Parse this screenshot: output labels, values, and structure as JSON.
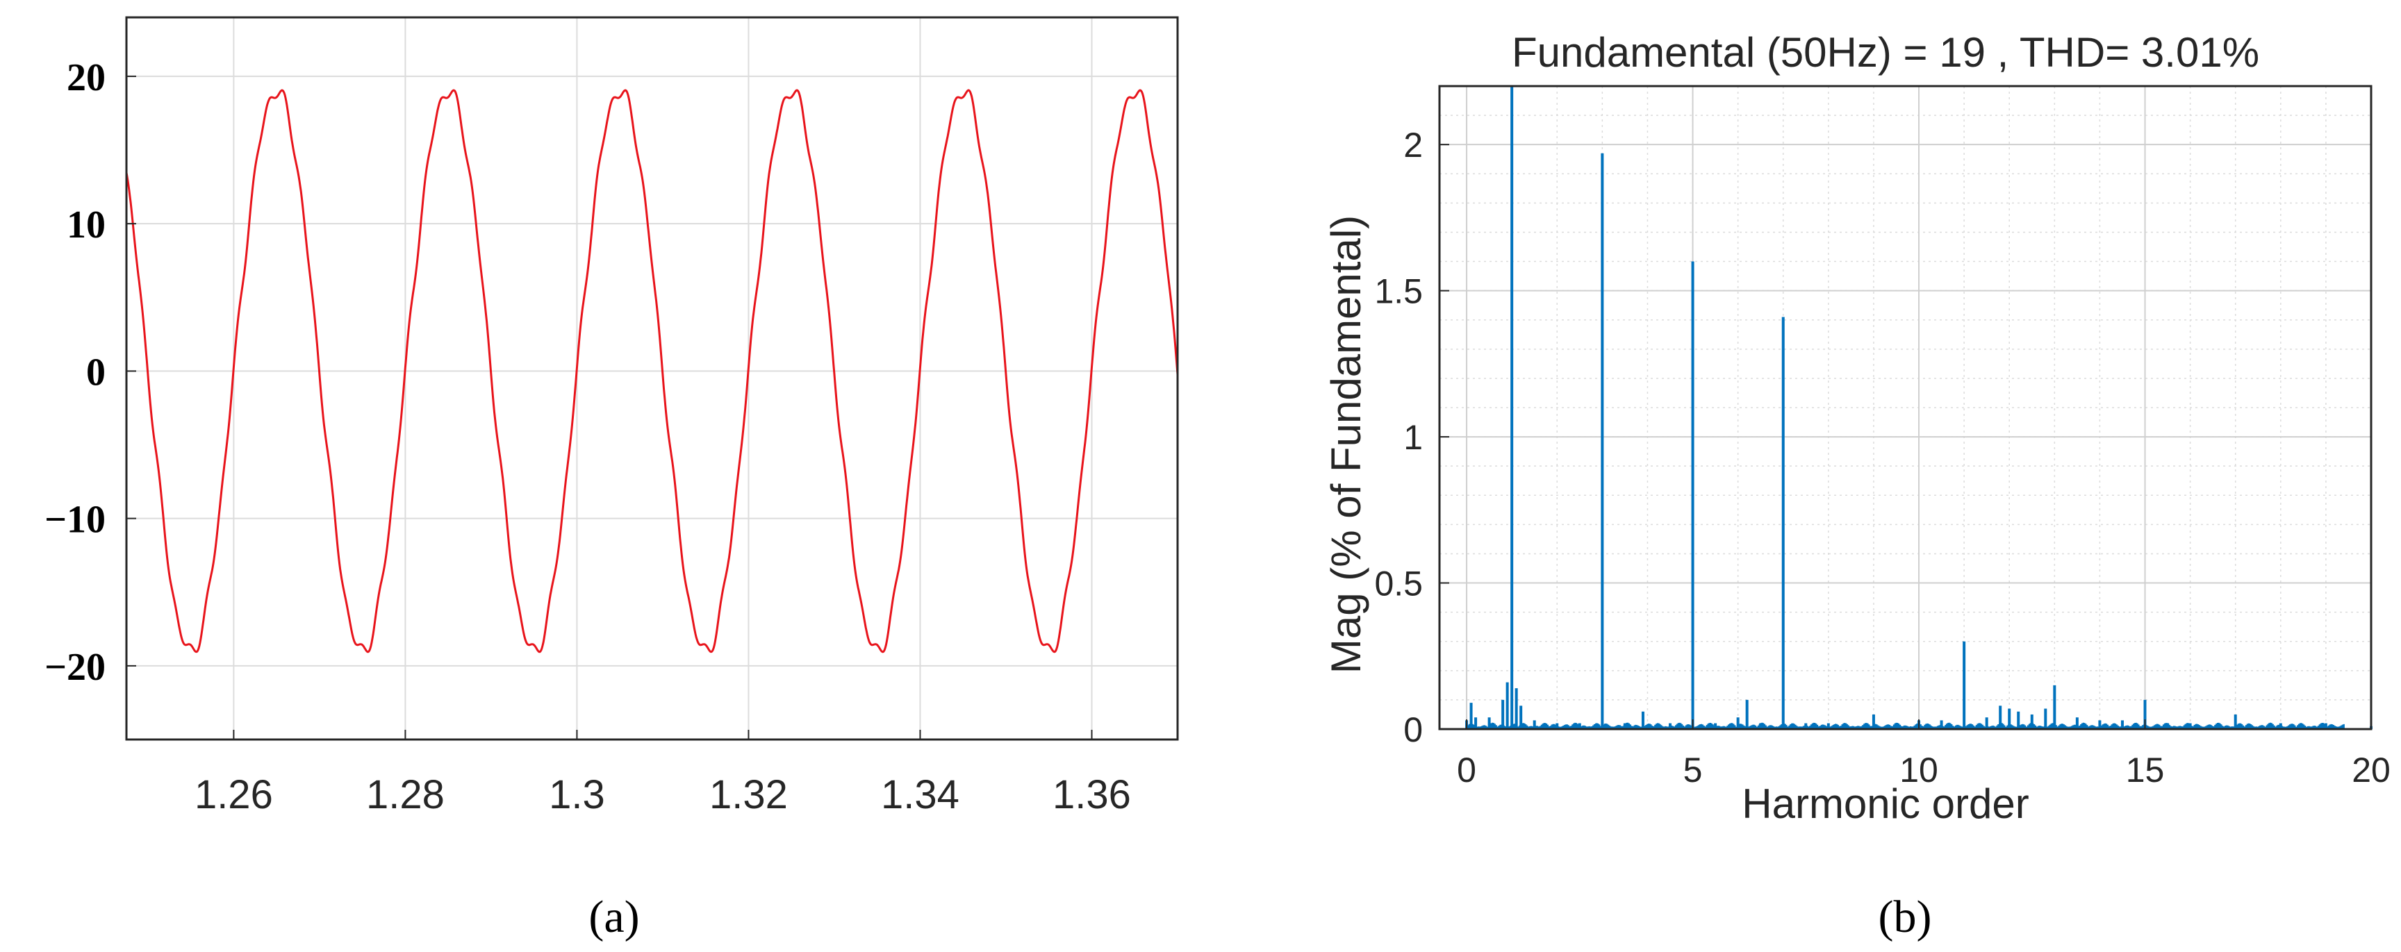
{
  "figure": {
    "panel_a_label": "(a)",
    "panel_b_label": "(b)"
  },
  "colors": {
    "waveform": "#e8141b",
    "spectrum": "#0072bd",
    "grid": "#dcdcdc",
    "axis": "#262626"
  },
  "chart_data": [
    {
      "id": "a",
      "type": "line",
      "title": "",
      "xlabel": "",
      "ylabel": "",
      "xlim": [
        1.2475,
        1.37
      ],
      "ylim": [
        -25,
        24
      ],
      "xticks": [
        1.26,
        1.28,
        1.3,
        1.32,
        1.34,
        1.36
      ],
      "xtick_labels": [
        "1.26",
        "1.28",
        "1.3",
        "1.32",
        "1.34",
        "1.36"
      ],
      "yticks": [
        -20,
        -10,
        0,
        10,
        20
      ],
      "ytick_labels": [
        "−20",
        "−10",
        "0",
        "10",
        "20"
      ],
      "grid": true,
      "series": [
        {
          "amplitude": 19,
          "frequency_hz": 50,
          "peak_time": 1.265,
          "x": [
            1.2475,
            1.25,
            1.2525,
            1.255,
            1.2575,
            1.26,
            1.2625,
            1.265,
            1.2675,
            1.27,
            1.2725,
            1.275,
            1.2775,
            1.28,
            1.2825,
            1.285,
            1.2875,
            1.29,
            1.2925,
            1.295,
            1.2975,
            1.3,
            1.3025,
            1.305,
            1.3075,
            1.31,
            1.3125,
            1.315,
            1.3175,
            1.32,
            1.3225,
            1.325,
            1.3275,
            1.33,
            1.3325,
            1.335,
            1.3375,
            1.34,
            1.3425,
            1.345,
            1.3475,
            1.35,
            1.3525,
            1.355,
            1.3575,
            1.36,
            1.3625,
            1.365,
            1.3675,
            1.37
          ],
          "y": [
            11.2,
            -4.1,
            -16.2,
            -19,
            -13.4,
            0,
            13.4,
            19,
            13.4,
            0,
            -13.4,
            -19,
            -13.4,
            0,
            13.4,
            19,
            13.4,
            0,
            -13.4,
            -19,
            -13.4,
            0,
            13.4,
            19,
            13.4,
            0,
            -13.4,
            -19,
            -13.4,
            0,
            13.4,
            19,
            13.4,
            0,
            -13.4,
            -19,
            -13.4,
            0,
            13.4,
            19,
            13.4,
            0,
            -13.4,
            -19,
            -13.4,
            0,
            13.4,
            19,
            13.4,
            0
          ]
        }
      ]
    },
    {
      "id": "b",
      "type": "bar",
      "title": "Fundamental (50Hz) = 19 , THD= 3.01%",
      "xlabel": "Harmonic order",
      "ylabel": "Mag (% of Fundamental)",
      "xlim": [
        -0.6,
        20
      ],
      "ylim": [
        0,
        2.2
      ],
      "xticks": [
        0,
        5,
        10,
        15,
        20
      ],
      "xtick_labels": [
        "0",
        "5",
        "10",
        "15",
        "20"
      ],
      "yticks": [
        0,
        0.5,
        1,
        1.5,
        2
      ],
      "ytick_labels": [
        "0",
        "0.5",
        "1",
        "1.5",
        "2"
      ],
      "grid": true,
      "minor_grid": true,
      "x": [
        0,
        0.1,
        0.2,
        0.5,
        0.8,
        0.9,
        1,
        1.1,
        1.2,
        1.5,
        2,
        2.5,
        3,
        3.5,
        3.9,
        4.5,
        5,
        5.5,
        6,
        6.2,
        6.5,
        7,
        7.5,
        8,
        9,
        9.5,
        10,
        10.5,
        11,
        11.5,
        11.8,
        12,
        12.2,
        12.5,
        12.8,
        13,
        13.5,
        14,
        14.5,
        15,
        15.5,
        16,
        17,
        18,
        19,
        20
      ],
      "values": [
        0.03,
        0.09,
        0.04,
        0.04,
        0.1,
        0.16,
        2.2,
        0.14,
        0.08,
        0.03,
        0.02,
        0.02,
        1.97,
        0.02,
        0.06,
        0.02,
        1.6,
        0.02,
        0.04,
        0.1,
        0.02,
        1.41,
        0.02,
        0.02,
        0.05,
        0.02,
        0.03,
        0.03,
        0.3,
        0.04,
        0.08,
        0.07,
        0.06,
        0.05,
        0.07,
        0.15,
        0.04,
        0.03,
        0.03,
        0.1,
        0.02,
        0.02,
        0.05,
        0.02,
        0.02,
        0.01
      ]
    }
  ]
}
